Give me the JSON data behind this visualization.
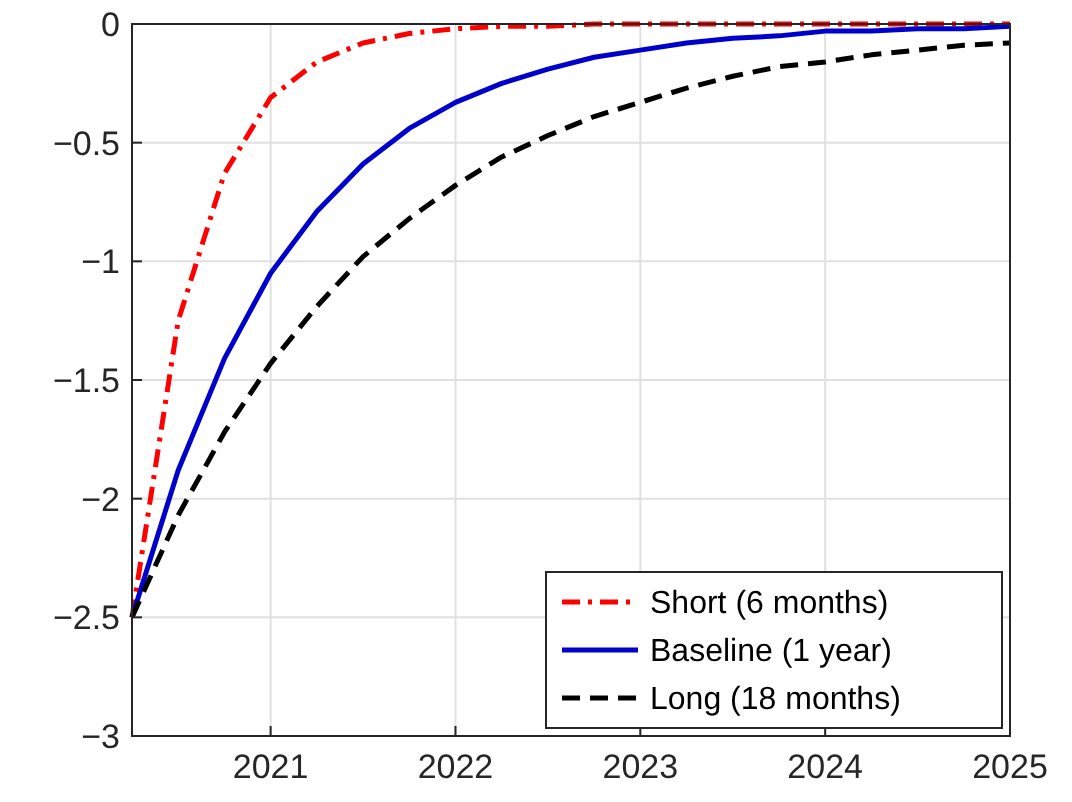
{
  "chart_data": {
    "type": "line",
    "x": [
      2020.25,
      2020.5,
      2020.75,
      2021,
      2021.25,
      2021.5,
      2021.75,
      2022,
      2022.25,
      2022.5,
      2022.75,
      2023,
      2023.25,
      2023.5,
      2023.75,
      2024,
      2024.25,
      2024.5,
      2024.75,
      2025
    ],
    "series": [
      {
        "name": "Short (6 months)",
        "color": "#ff0000",
        "line_style": "dashdot",
        "values": [
          -2.5,
          -1.25,
          -0.63,
          -0.31,
          -0.16,
          -0.08,
          -0.04,
          -0.02,
          -0.01,
          -0.01,
          0,
          0,
          0,
          0,
          0,
          0,
          0,
          0,
          0,
          0
        ]
      },
      {
        "name": "Baseline (1 year)",
        "color": "#0000cc",
        "line_style": "solid",
        "values": [
          -2.5,
          -1.88,
          -1.41,
          -1.05,
          -0.79,
          -0.59,
          -0.44,
          -0.33,
          -0.25,
          -0.19,
          -0.14,
          -0.11,
          -0.08,
          -0.06,
          -0.05,
          -0.03,
          -0.03,
          -0.02,
          -0.02,
          -0.01
        ]
      },
      {
        "name": "Long (18 months)",
        "color": "#000000",
        "line_style": "dashed",
        "values": [
          -2.5,
          -2.07,
          -1.72,
          -1.43,
          -1.19,
          -0.98,
          -0.82,
          -0.68,
          -0.56,
          -0.47,
          -0.39,
          -0.33,
          -0.27,
          -0.22,
          -0.18,
          -0.16,
          -0.13,
          -0.11,
          -0.09,
          -0.08
        ]
      }
    ],
    "xlim": [
      2020.25,
      2025
    ],
    "xticks": [
      2021,
      2022,
      2023,
      2024,
      2025
    ],
    "ylim": [
      -3,
      0
    ],
    "yticks": [
      {
        "value": -3,
        "label": "−3"
      },
      {
        "value": -2.5,
        "label": "−2.5"
      },
      {
        "value": -2,
        "label": "−2"
      },
      {
        "value": -1.5,
        "label": "−1.5"
      },
      {
        "value": -1,
        "label": "−1"
      },
      {
        "value": -0.5,
        "label": "−0.5"
      },
      0
    ],
    "grid": true,
    "legend": "bottom right"
  }
}
